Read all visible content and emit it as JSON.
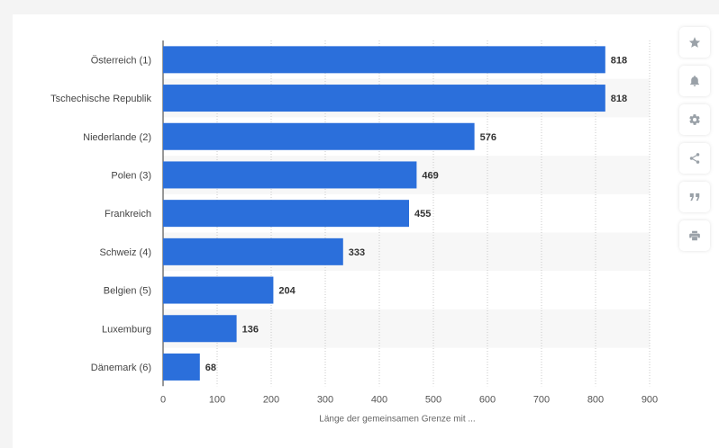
{
  "chart_data": {
    "type": "bar",
    "orientation": "horizontal",
    "categories": [
      "Österreich (1)",
      "Tschechische Republik",
      "Niederlande (2)",
      "Polen (3)",
      "Frankreich",
      "Schweiz (4)",
      "Belgien (5)",
      "Luxemburg",
      "Dänemark (6)"
    ],
    "values": [
      818,
      818,
      576,
      469,
      455,
      333,
      204,
      136,
      68
    ],
    "value_labels": [
      "818",
      "818",
      "576",
      "469",
      "455",
      "333",
      "204",
      "136",
      "68"
    ],
    "xticks": [
      0,
      100,
      200,
      300,
      400,
      500,
      600,
      700,
      800,
      900
    ],
    "xlim": [
      0,
      900
    ],
    "xlabel": "Länge der gemeinsamen Grenze mit ...",
    "ylabel": "",
    "title": "",
    "grid": true,
    "legend": "none",
    "bar_color": "#2b6fdb"
  },
  "toolbar": {
    "buttons": [
      {
        "name": "favorite-button",
        "icon": "star-icon"
      },
      {
        "name": "notification-button",
        "icon": "bell-icon"
      },
      {
        "name": "settings-button",
        "icon": "gear-icon"
      },
      {
        "name": "share-button",
        "icon": "share-icon"
      },
      {
        "name": "cite-button",
        "icon": "quote-icon"
      },
      {
        "name": "print-button",
        "icon": "print-icon"
      }
    ]
  }
}
